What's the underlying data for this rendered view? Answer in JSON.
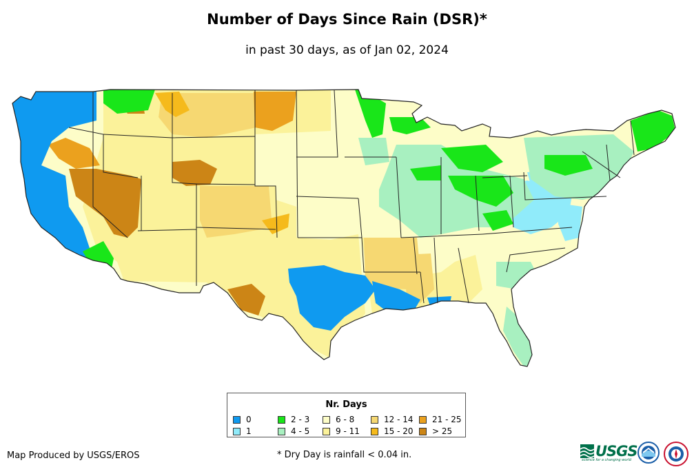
{
  "header": {
    "title": "Number of Days Since Rain (DSR)*",
    "subtitle": "in past 30 days, as of Jan 02, 2024"
  },
  "legend": {
    "title": "Nr. Days",
    "items": [
      {
        "label": "0",
        "color": "#0f9af0"
      },
      {
        "label": "1",
        "color": "#90ebfa"
      },
      {
        "label": "2 - 3",
        "color": "#19e619"
      },
      {
        "label": "4 - 5",
        "color": "#a8f0c0"
      },
      {
        "label": "6 - 8",
        "color": "#fdfdc8"
      },
      {
        "label": "9 - 11",
        "color": "#fbf29a"
      },
      {
        "label": "12 - 14",
        "color": "#f6d872"
      },
      {
        "label": "15 - 20",
        "color": "#f5ba1c"
      },
      {
        "label": "21 - 25",
        "color": "#eba11e"
      },
      {
        "label": "> 25",
        "color": "#cc8516"
      }
    ]
  },
  "footer": {
    "credit": "Map Produced by USGS/EROS",
    "footnote": "* Dry Day is rainfall < 0.04 in.",
    "usgs_logo_text": "USGS",
    "usgs_tagline": "science for a changing world"
  },
  "map": {
    "region": "Contiguous United States",
    "colors": {
      "d0": "#0f9af0",
      "d1": "#90ebfa",
      "d2_3": "#19e619",
      "d4_5": "#a8f0c0",
      "d6_8": "#fdfdc8",
      "d9_11": "#fbf29a",
      "d12_14": "#f6d872",
      "d15_20": "#f5ba1c",
      "d21_25": "#eba11e",
      "d25plus": "#cc8516"
    }
  }
}
